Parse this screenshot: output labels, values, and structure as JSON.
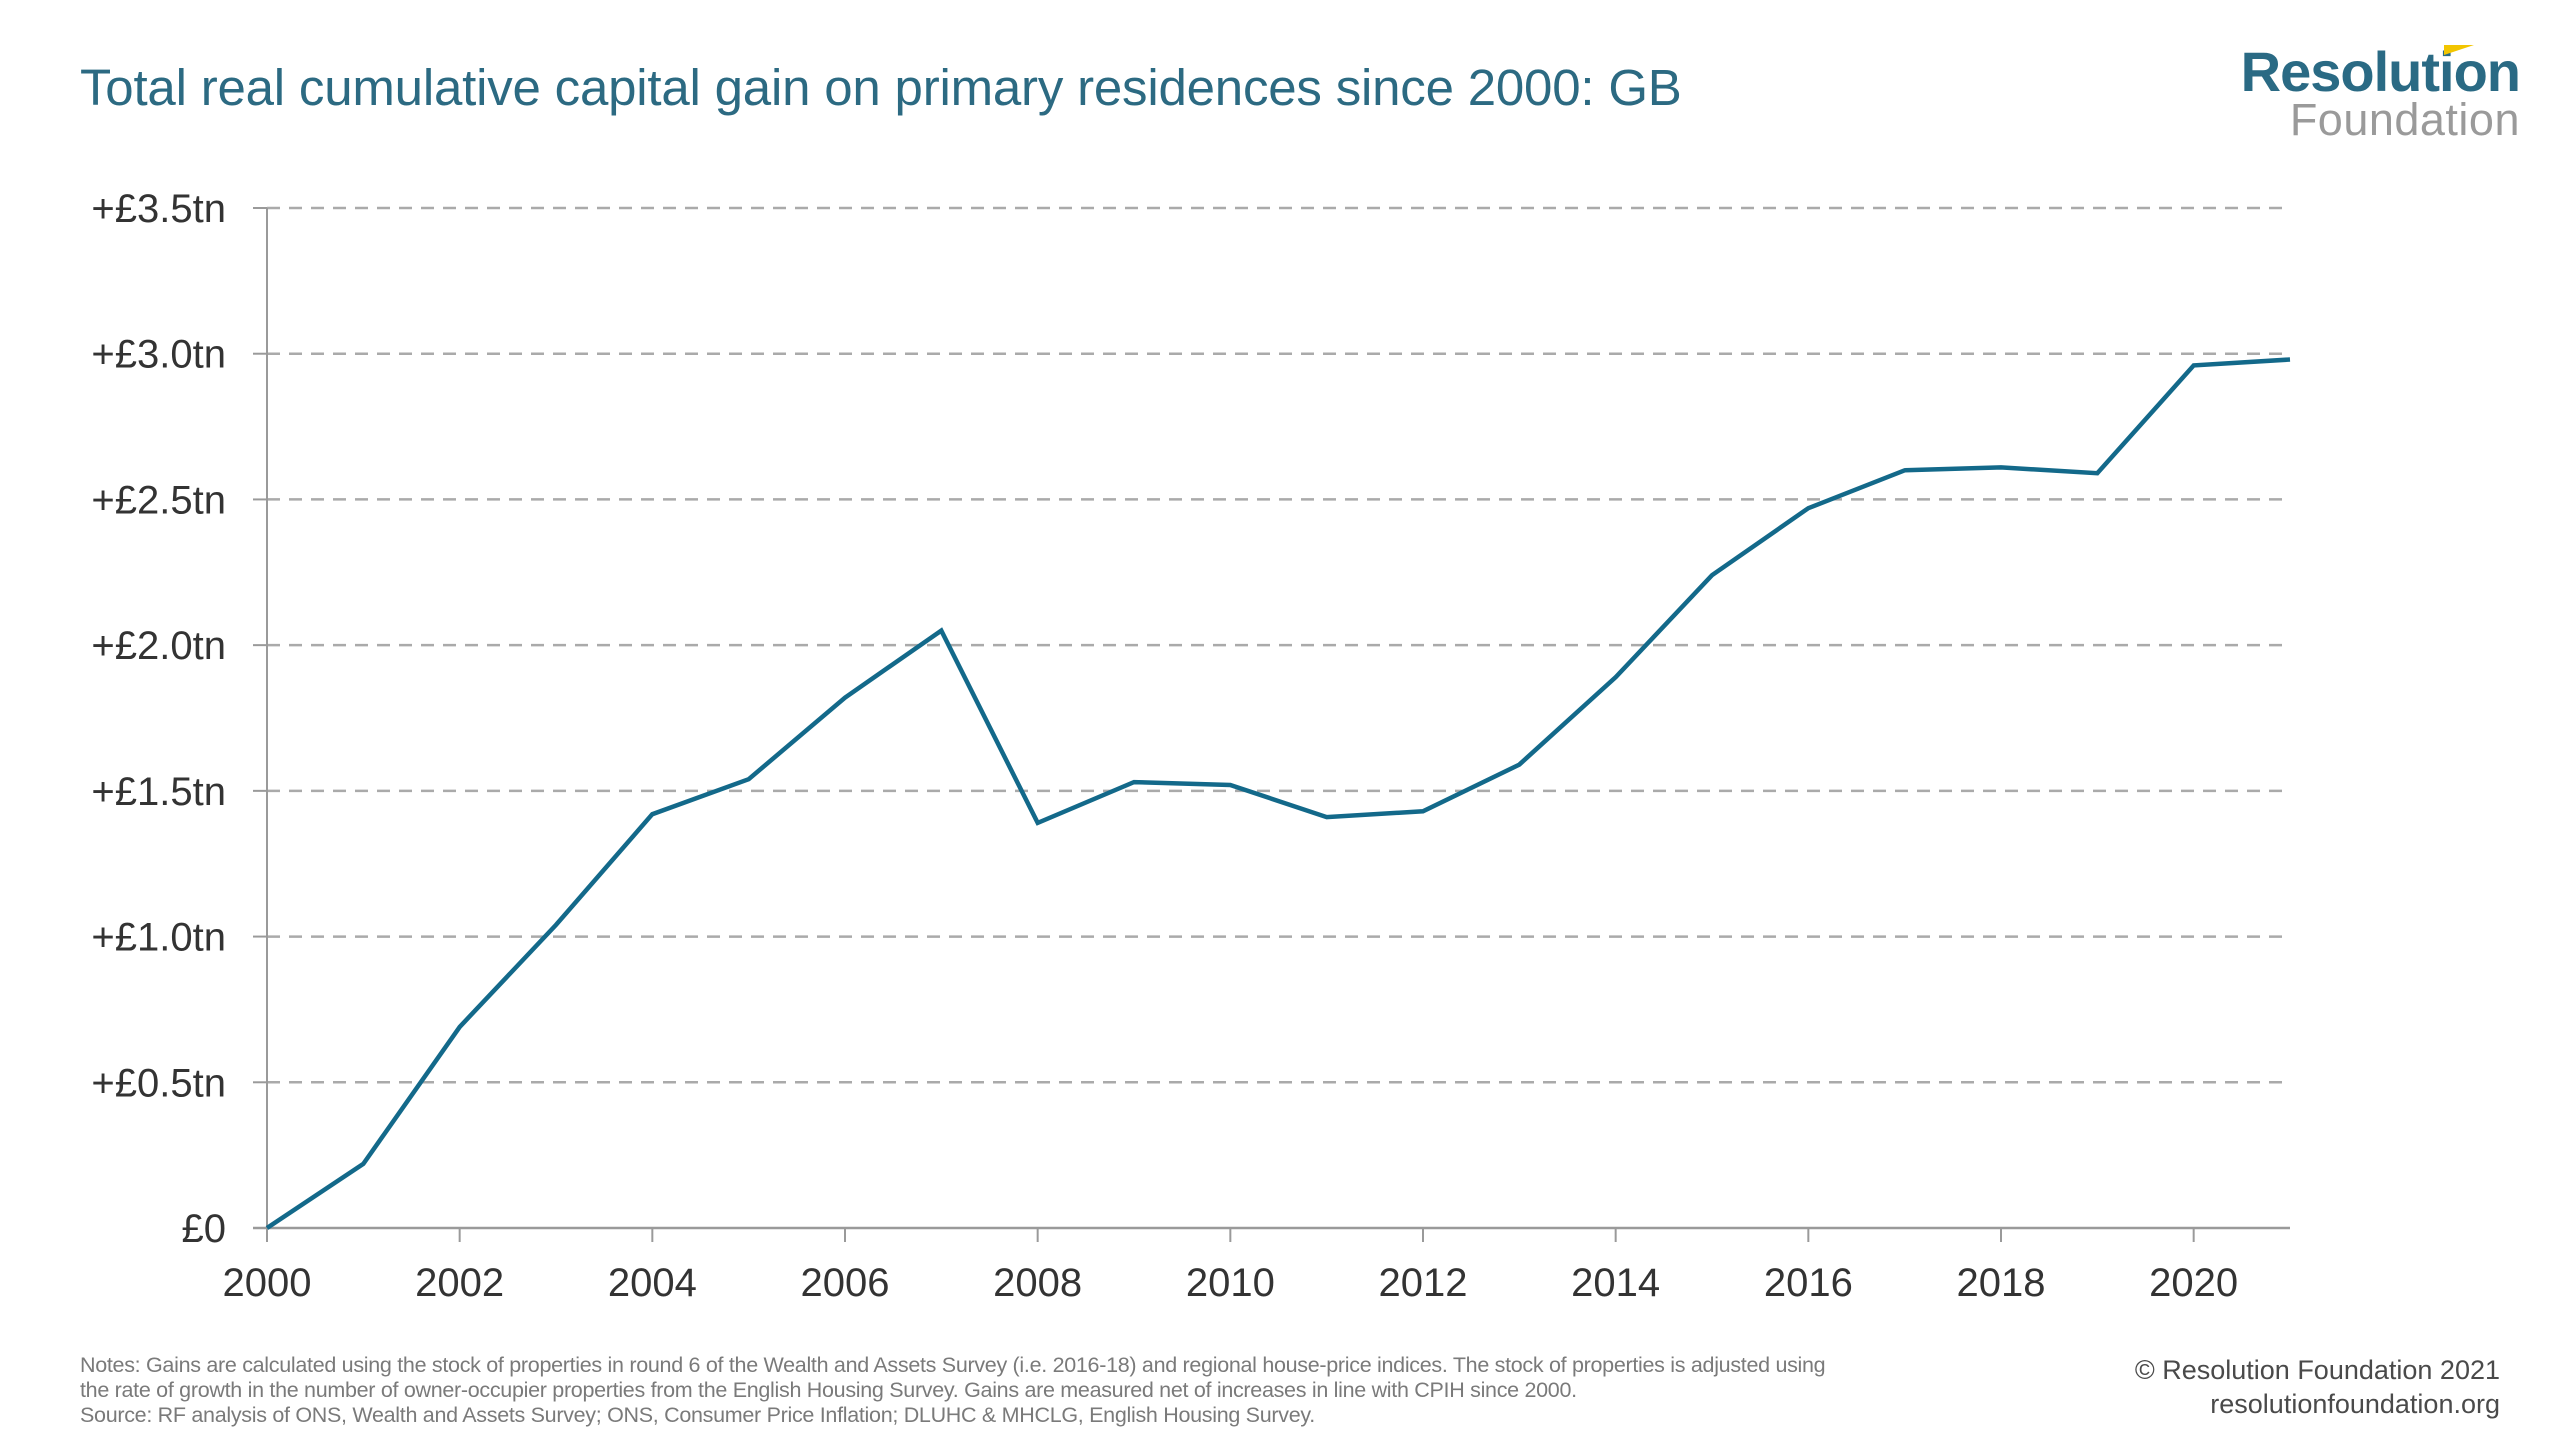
{
  "header": {
    "title": "Total real cumulative capital gain on primary residences since 2000: GB",
    "logo": {
      "main": "Resolution",
      "sub": "Foundation",
      "accent_color": "#f2c500"
    }
  },
  "colors": {
    "title": "#2c6a82",
    "line": "#13698a",
    "grid": "#aaaaaa",
    "axis": "#9a9a9a"
  },
  "chart_data": {
    "type": "line",
    "title": "Total real cumulative capital gain on primary residences since 2000: GB",
    "xlabel": "",
    "ylabel": "",
    "x": [
      2000,
      2001,
      2002,
      2003,
      2004,
      2005,
      2006,
      2007,
      2008,
      2009,
      2010,
      2011,
      2012,
      2013,
      2014,
      2015,
      2016,
      2017,
      2018,
      2019,
      2020,
      2021
    ],
    "series": [
      {
        "name": "Total real cumulative capital gain (£tn)",
        "values": [
          0.0,
          0.22,
          0.69,
          1.04,
          1.42,
          1.54,
          1.82,
          2.05,
          1.39,
          1.53,
          1.52,
          1.41,
          1.43,
          1.59,
          1.89,
          2.24,
          2.47,
          2.6,
          2.61,
          2.59,
          2.96,
          2.98
        ]
      }
    ],
    "xlim": [
      2000,
      2021
    ],
    "ylim": [
      0,
      3.5
    ],
    "x_ticks": [
      2000,
      2002,
      2004,
      2006,
      2008,
      2010,
      2012,
      2014,
      2016,
      2018,
      2020
    ],
    "x_tick_labels": [
      "2000",
      "2002",
      "2004",
      "2006",
      "2008",
      "2010",
      "2012",
      "2014",
      "2016",
      "2018",
      "2020"
    ],
    "y_ticks": [
      0,
      0.5,
      1.0,
      1.5,
      2.0,
      2.5,
      3.0,
      3.5
    ],
    "y_tick_labels": [
      "£0",
      "+£0.5tn",
      "+£1.0tn",
      "+£1.5tn",
      "+£2.0tn",
      "+£2.5tn",
      "+£3.0tn",
      "+£3.5tn"
    ],
    "grid": "horizontal dashed",
    "legend": "none"
  },
  "footer": {
    "notes": [
      "Notes: Gains are calculated using the stock of properties in round 6 of the Wealth and Assets Survey (i.e. 2016-18) and regional house-price indices. The stock of properties is adjusted using",
      "the rate of growth in the number of owner-occupier properties from the English Housing Survey. Gains are measured net of increases in line with CPIH since 2000.",
      "Source: RF analysis of ONS, Wealth and Assets Survey; ONS, Consumer Price Inflation; DLUHC & MHCLG, English Housing Survey."
    ],
    "copyright": "© Resolution Foundation 2021",
    "website": "resolutionfoundation.org"
  }
}
